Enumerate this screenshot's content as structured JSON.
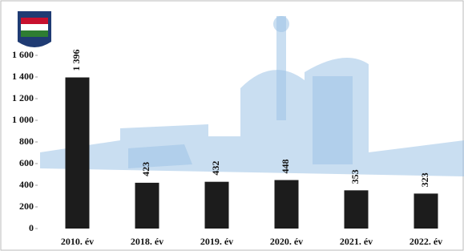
{
  "chart_data": {
    "type": "bar",
    "categories": [
      "2010. év",
      "2018. év",
      "2019. év",
      "2020. év",
      "2021. év",
      "2022. év"
    ],
    "values": [
      1396,
      423,
      432,
      448,
      353,
      323
    ],
    "value_labels": [
      "1 396",
      "423",
      "432",
      "448",
      "353",
      "323"
    ],
    "color": "#1c1c1c",
    "ylim": [
      0,
      1600
    ],
    "yticks": [
      0,
      200,
      400,
      600,
      800,
      {
        "value": 1000,
        "label": "1 000"
      },
      {
        "value": 1200,
        "label": "1 200"
      },
      {
        "value": 1400,
        "label": "1 400"
      },
      {
        "value": 1600,
        "label": "1 600"
      }
    ],
    "grid": false
  }
}
